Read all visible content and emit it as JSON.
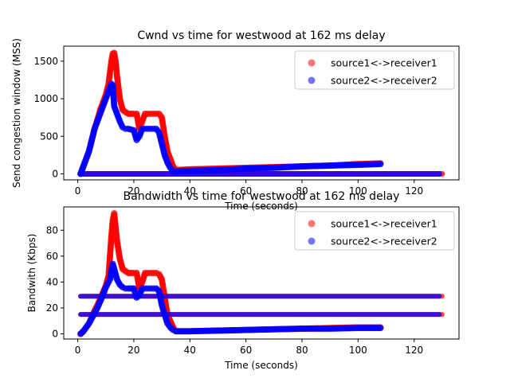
{
  "chart_data": [
    {
      "type": "scatter",
      "title": "Cwnd vs time for westwood at 162 ms delay",
      "xlabel": "Time (seconds)",
      "ylabel": "Send congestion window (MSS)",
      "xlim": [
        -5,
        136
      ],
      "ylim": [
        -80,
        1700
      ],
      "xticks": [
        0,
        20,
        40,
        60,
        80,
        100,
        120
      ],
      "yticks": [
        0,
        500,
        1000,
        1500
      ],
      "legend_position": "top-right",
      "series": [
        {
          "name": "source1<->receiver1",
          "color": "#ff0000",
          "x": [
            1,
            2,
            3,
            4,
            5,
            6,
            7,
            8,
            9,
            10,
            11,
            11.5,
            12,
            12.5,
            13,
            13.5,
            14,
            15,
            16,
            18,
            20,
            21,
            22,
            23,
            24,
            25,
            26,
            27,
            28,
            29,
            30,
            31,
            32,
            33,
            34,
            35,
            40,
            50,
            60,
            70,
            80,
            90,
            100,
            108
          ],
          "y": [
            0,
            100,
            200,
            300,
            450,
            600,
            720,
            850,
            950,
            1050,
            1200,
            1350,
            1500,
            1600,
            1610,
            1500,
            1300,
            1000,
            850,
            800,
            800,
            800,
            600,
            700,
            800,
            800,
            800,
            800,
            800,
            800,
            750,
            500,
            300,
            200,
            100,
            50,
            60,
            70,
            80,
            90,
            100,
            110,
            130,
            140
          ]
        },
        {
          "name": "source2<->receiver2",
          "color": "#0000ff",
          "x": [
            1,
            2,
            3,
            4,
            5,
            6,
            7,
            8,
            9,
            10,
            11,
            11.5,
            12,
            12.5,
            13,
            14,
            15,
            16,
            17,
            18,
            20,
            21,
            22,
            23,
            24,
            25,
            26,
            27,
            28,
            29,
            30,
            31,
            32,
            33,
            34,
            35,
            40,
            50,
            60,
            70,
            80,
            90,
            100,
            108
          ],
          "y": [
            0,
            100,
            200,
            300,
            450,
            600,
            700,
            800,
            900,
            1000,
            1100,
            1150,
            1200,
            1180,
            900,
            800,
            700,
            620,
            600,
            600,
            580,
            450,
            500,
            600,
            600,
            600,
            600,
            600,
            600,
            550,
            400,
            250,
            150,
            80,
            40,
            30,
            40,
            50,
            70,
            80,
            100,
            110,
            120,
            130
          ]
        }
      ]
    },
    {
      "type": "scatter",
      "title": "Bandwidth vs time for westwood at 162 ms delay",
      "xlabel": "Time (seconds)",
      "ylabel": "Bandwith (Kbps)",
      "xlim": [
        -5,
        136
      ],
      "ylim": [
        -4,
        98
      ],
      "xticks": [
        0,
        20,
        40,
        60,
        80,
        100,
        120
      ],
      "yticks": [
        0,
        20,
        40,
        60,
        80
      ],
      "legend_position": "top-right",
      "series": [
        {
          "name": "source1<->receiver1",
          "color": "#ff0000",
          "x": [
            1,
            2,
            3,
            4,
            5,
            6,
            7,
            8,
            9,
            10,
            11,
            11.5,
            12,
            12.5,
            13,
            13.5,
            14,
            15,
            16,
            18,
            20,
            21,
            22,
            23,
            24,
            25,
            26,
            27,
            28,
            29,
            30,
            31,
            32,
            33,
            34,
            35,
            40,
            50,
            60,
            70,
            80,
            90,
            100,
            108
          ],
          "y": [
            0,
            2,
            5,
            8,
            13,
            18,
            22,
            27,
            32,
            37,
            45,
            60,
            75,
            88,
            93,
            82,
            72,
            58,
            50,
            47,
            47,
            47,
            35,
            40,
            47,
            47,
            47,
            47,
            47,
            46,
            42,
            28,
            15,
            10,
            5,
            2,
            2,
            2.5,
            3,
            3.5,
            4,
            4.5,
            5,
            5
          ],
          "bands": [
            {
              "y": 29,
              "x_start": 1,
              "x_end": 130
            },
            {
              "y": 15,
              "x_start": 1,
              "x_end": 130
            }
          ]
        },
        {
          "name": "source2<->receiver2",
          "color": "#0000ff",
          "x": [
            1,
            2,
            3,
            4,
            5,
            6,
            7,
            8,
            9,
            10,
            11,
            11.5,
            12,
            12.5,
            13,
            14,
            15,
            16,
            17,
            18,
            20,
            21,
            22,
            23,
            24,
            25,
            26,
            27,
            28,
            29,
            30,
            31,
            32,
            33,
            34,
            35,
            40,
            50,
            60,
            70,
            80,
            90,
            100,
            108
          ],
          "y": [
            0,
            2,
            5,
            8,
            12,
            16,
            20,
            25,
            30,
            36,
            40,
            42,
            48,
            54,
            50,
            42,
            38,
            36,
            35,
            35,
            35,
            28,
            30,
            35,
            35,
            35,
            35,
            35,
            35,
            33,
            22,
            15,
            8,
            5,
            3,
            2,
            2,
            2.5,
            3,
            3.5,
            4,
            4,
            4.5,
            4.5
          ],
          "bands": [
            {
              "y": 29,
              "x_start": 1,
              "x_end": 129
            },
            {
              "y": 15,
              "x_start": 1,
              "x_end": 129
            }
          ]
        }
      ]
    }
  ]
}
